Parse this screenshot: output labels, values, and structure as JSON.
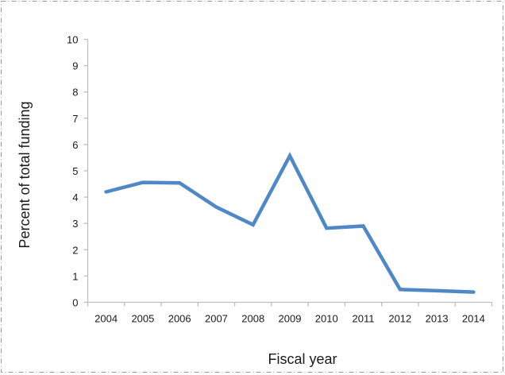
{
  "chart_data": {
    "type": "line",
    "title": "",
    "xlabel": "Fiscal year",
    "ylabel": "Percent of total funding",
    "categories": [
      "2004",
      "2005",
      "2006",
      "2007",
      "2008",
      "2009",
      "2010",
      "2011",
      "2012",
      "2013",
      "2014"
    ],
    "series": [
      {
        "name": "Percent of total funding",
        "color": "#4F88C6",
        "values": [
          4.2,
          4.56,
          4.54,
          3.62,
          2.95,
          5.57,
          2.82,
          2.9,
          0.49,
          0.44,
          0.39
        ]
      }
    ],
    "ylim": [
      0,
      10
    ],
    "yticks": [
      0,
      1,
      2,
      3,
      4,
      5,
      6,
      7,
      8,
      9,
      10
    ],
    "grid": false,
    "legend": "none"
  },
  "colors": {
    "line": "#4F88C6",
    "axis": "#BFBFBF",
    "text": "#1a1a1a",
    "border": "#9a9a9a"
  }
}
